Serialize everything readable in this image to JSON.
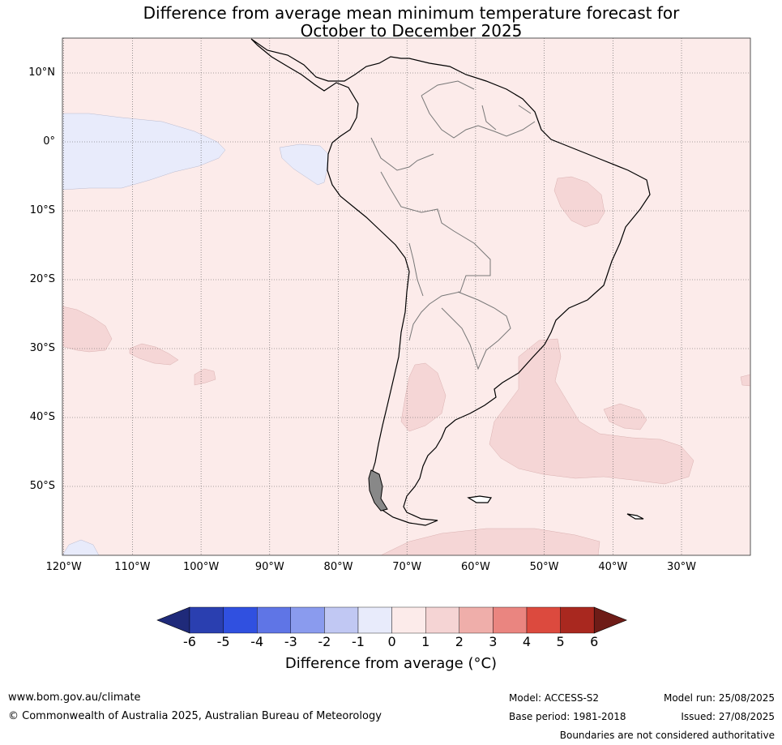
{
  "title_line1": "Difference from average mean minimum temperature forecast for",
  "title_line2": "October to December 2025",
  "latitude_labels": [
    "10°N",
    "0°",
    "10°S",
    "20°S",
    "30°S",
    "40°S",
    "50°S"
  ],
  "longitude_labels": [
    "120°W",
    "110°W",
    "100°W",
    "90°W",
    "80°W",
    "70°W",
    "60°W",
    "50°W",
    "40°W",
    "30°W"
  ],
  "colorbar": {
    "ticks": [
      "-6",
      "-5",
      "-4",
      "-3",
      "-2",
      "-1",
      "0",
      "1",
      "2",
      "3",
      "4",
      "5",
      "6"
    ],
    "colors": [
      "#1f2a7a",
      "#2a3fb0",
      "#3050e0",
      "#5f75e6",
      "#8a9bee",
      "#c1c8f3",
      "#e8ebfb",
      "#fcebea",
      "#f5d4d4",
      "#efaeaa",
      "#ea8580",
      "#dc4a3e",
      "#a9281f",
      "#6e1c17"
    ],
    "label": "Difference from average (°C)"
  },
  "map_colors": {
    "background": "#fcebea",
    "warm_patch": "#f5d6d6",
    "cool_patch": "#e8ebfb"
  },
  "footer": {
    "website": "www.bom.gov.au/climate",
    "copyright": "© Commonwealth of Australia 2025, Australian Bureau of Meteorology",
    "model": "Model: ACCESS-S2",
    "base_period": "Base period: 1981-2018",
    "model_run": "Model run: 25/08/2025",
    "issued": "Issued: 27/08/2025",
    "disclaimer": "Boundaries are not considered authoritative"
  }
}
